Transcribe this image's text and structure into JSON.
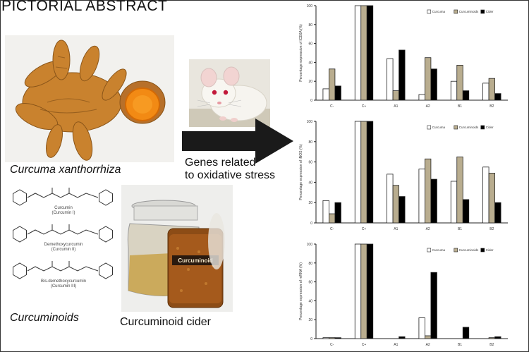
{
  "title": "PICTORIAL ABSTRACT",
  "captions": {
    "plant": "Curcuma xanthorrhiza",
    "genes_line1": "Genes related",
    "genes_line2": "to oxidative stress",
    "curcuminoids": "Curcuminoids",
    "cider": "Curcuminoid cider"
  },
  "molecules": [
    {
      "name": "Curcumin",
      "sub": "(Curcumin I)"
    },
    {
      "name": "Demethoxycurcumin",
      "sub": "(Curcumin II)"
    },
    {
      "name": "Bis-demethoxycurcumin",
      "sub": "(Curcumin III)"
    }
  ],
  "jar_label": "Curcuminoid",
  "colors": {
    "series_white": "#ffffff",
    "series_tan": "#b9ad8f",
    "series_black": "#000000",
    "arrow": "#1a1a1a"
  },
  "chart_data": [
    {
      "type": "bar",
      "ylabel": "Percentage expression of ICE6A (%)",
      "ylim": [
        0,
        100
      ],
      "categories": [
        "C-",
        "C+",
        "A1",
        "A2",
        "B1",
        "B2"
      ],
      "series": [
        {
          "name": "Curcuma",
          "values": [
            12,
            100,
            44,
            6,
            20,
            18
          ]
        },
        {
          "name": "Curcuminoids",
          "values": [
            33,
            100,
            10,
            45,
            37,
            23
          ]
        },
        {
          "name": "Cider",
          "values": [
            15,
            100,
            53,
            33,
            10,
            7
          ]
        }
      ]
    },
    {
      "type": "bar",
      "ylabel": "Percentage expression of iNOS (%)",
      "ylim": [
        0,
        100
      ],
      "categories": [
        "C-",
        "C+",
        "A1",
        "A2",
        "B1",
        "B2"
      ],
      "series": [
        {
          "name": "Curcuma",
          "values": [
            22,
            100,
            48,
            53,
            41,
            55
          ]
        },
        {
          "name": "Curcuminoids",
          "values": [
            9,
            100,
            37,
            63,
            65,
            49
          ]
        },
        {
          "name": "Cider",
          "values": [
            20,
            100,
            26,
            43,
            23,
            20
          ]
        }
      ]
    },
    {
      "type": "bar",
      "ylabel": "Percentage expression of mRNA (%)",
      "ylim": [
        0,
        100
      ],
      "categories": [
        "C-",
        "C+",
        "A1",
        "A2",
        "B1",
        "B2"
      ],
      "series": [
        {
          "name": "Curcuma",
          "values": [
            1,
            100,
            0,
            22,
            0,
            0
          ]
        },
        {
          "name": "Curcuminoids",
          "values": [
            1,
            100,
            0,
            3,
            0,
            1
          ]
        },
        {
          "name": "Cider",
          "values": [
            1,
            100,
            2,
            70,
            12,
            2
          ]
        }
      ]
    }
  ]
}
